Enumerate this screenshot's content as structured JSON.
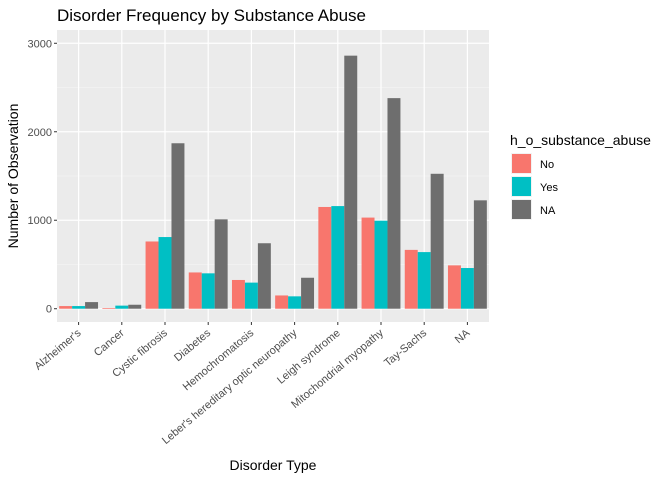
{
  "chart_data": {
    "type": "bar",
    "title": "Disorder Frequency by Substance Abuse",
    "xlabel": "Disorder Type",
    "ylabel": "Number of Observation",
    "ylim": [
      -150,
      3150
    ],
    "yticks": [
      0,
      1000,
      2000,
      3000
    ],
    "grid": true,
    "legend_position": "right",
    "legend_title": "h_o_substance_abuse",
    "categories": [
      "Alzheimer's",
      "Cancer",
      "Cystic fibrosis",
      "Diabetes",
      "Hemochromatosis",
      "Leber's hereditary optic neuropathy",
      "Leigh syndrome",
      "Mitochondrial myopathy",
      "Tay-Sachs",
      "NA"
    ],
    "series": [
      {
        "name": "No",
        "color": "#F8766D",
        "values": [
          30,
          8,
          760,
          410,
          325,
          150,
          1150,
          1030,
          665,
          490
        ]
      },
      {
        "name": "Yes",
        "color": "#00BFC4",
        "values": [
          30,
          35,
          810,
          400,
          295,
          140,
          1160,
          995,
          640,
          460
        ]
      },
      {
        "name": "NA",
        "color": "#6E6E6E",
        "values": [
          75,
          45,
          1870,
          1010,
          740,
          350,
          2860,
          2380,
          1525,
          1225
        ]
      }
    ]
  }
}
